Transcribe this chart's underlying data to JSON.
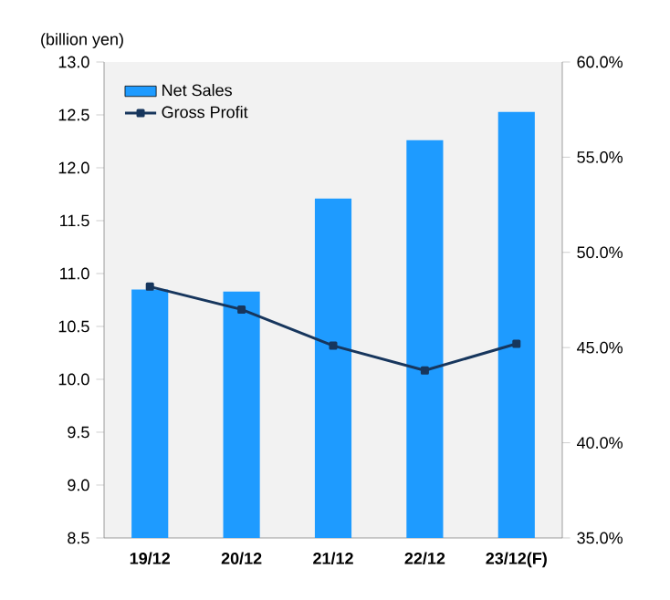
{
  "chart_data": {
    "type": "bar",
    "ylabel": "(billion yen)",
    "categories": [
      "19/12",
      "20/12",
      "21/12",
      "22/12",
      "23/12(F)"
    ],
    "series": [
      {
        "name": "Net Sales",
        "color": "#1e9bff",
        "values": [
          10.85,
          10.83,
          11.71,
          12.26,
          12.53
        ]
      },
      {
        "name": "Gross Profit",
        "type": "line",
        "axis": "y2",
        "color": "#17365d",
        "marker": "square",
        "values": [
          48.2,
          47.0,
          45.1,
          43.8,
          45.2
        ]
      }
    ],
    "ylim": [
      8.5,
      13.0
    ],
    "yticks": [
      {
        "value": 8.5,
        "label": "8.5"
      },
      {
        "value": 9,
        "label": "9.0"
      },
      {
        "value": 9.5,
        "label": "9.5"
      },
      {
        "value": 10,
        "label": "10.0"
      },
      {
        "value": 10.5,
        "label": "10.5"
      },
      {
        "value": 11,
        "label": "11.0"
      },
      {
        "value": 11.5,
        "label": "11.5"
      },
      {
        "value": 12,
        "label": "12.0"
      },
      {
        "value": 12.5,
        "label": "12.5"
      },
      {
        "value": 13,
        "label": "13.0"
      }
    ],
    "y2lim": [
      35,
      60
    ],
    "y2ticks": [
      {
        "value": 35,
        "label": "35.0%"
      },
      {
        "value": 40,
        "label": "40.0%"
      },
      {
        "value": 45,
        "label": "45.0%"
      },
      {
        "value": 50,
        "label": "50.0%"
      },
      {
        "value": 55,
        "label": "55.0%"
      },
      {
        "value": 60,
        "label": "60.0%"
      }
    ],
    "grid": false,
    "legend": "top left"
  }
}
